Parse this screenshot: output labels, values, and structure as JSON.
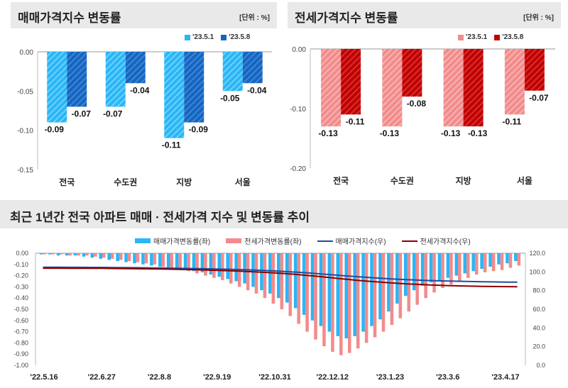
{
  "colors": {
    "sale_prev": "#29b6f6",
    "sale_curr": "#1565c0",
    "jeonse_prev": "#f28b8b",
    "jeonse_curr": "#c00000",
    "sale_index_line": "#1f4e9c",
    "jeonse_index_line": "#8b0000"
  },
  "chart_data": [
    {
      "type": "bar",
      "title": "매매가격지수 변동률",
      "unit_label": "[단위 : %]",
      "categories": [
        "전국",
        "수도권",
        "지방",
        "서울"
      ],
      "series": [
        {
          "name": "'23.5.1",
          "values": [
            -0.09,
            -0.07,
            -0.11,
            -0.05
          ]
        },
        {
          "name": "'23.5.8",
          "values": [
            -0.07,
            -0.04,
            -0.09,
            -0.04
          ]
        }
      ],
      "ylim": [
        -0.15,
        0.0
      ],
      "yticks": [
        "0.00",
        "-0.05",
        "-0.10",
        "-0.15"
      ],
      "yticks_values": [
        0.0,
        -0.05,
        -0.1,
        -0.15
      ],
      "value_labels": [
        [
          "-0.09",
          "-0.07",
          "-0.11",
          "-0.05"
        ],
        [
          "-0.07",
          "-0.04",
          "-0.09",
          "-0.04"
        ]
      ],
      "legend": "top-right"
    },
    {
      "type": "bar",
      "title": "전세가격지수 변동률",
      "unit_label": "[단위 : %]",
      "categories": [
        "전국",
        "수도권",
        "지방",
        "서울"
      ],
      "series": [
        {
          "name": "'23.5.1",
          "values": [
            -0.13,
            -0.13,
            -0.13,
            -0.11
          ]
        },
        {
          "name": "'23.5.8",
          "values": [
            -0.11,
            -0.08,
            -0.13,
            -0.07
          ]
        }
      ],
      "ylim": [
        -0.2,
        0.0
      ],
      "yticks": [
        "0.00",
        "-0.10",
        "-0.20"
      ],
      "yticks_values": [
        0.0,
        -0.1,
        -0.2
      ],
      "value_labels": [
        [
          "-0.13",
          "-0.13",
          "-0.13",
          "-0.11"
        ],
        [
          "-0.11",
          "-0.08",
          "-0.13",
          "-0.07"
        ]
      ],
      "legend": "top-right"
    },
    {
      "type": "bar",
      "title": "최근 1년간 전국 아파트 매매 · 전세가격 지수 및 변동률 추이",
      "legend_labels": [
        "매매가격변동률(좌)",
        "전세가격변동률(좌)",
        "매매가격지수(우)",
        "전세가격지수(우)"
      ],
      "x_tick_labels": [
        "'22.5.16",
        "'22.6.27",
        "'22.8.8",
        "'22.9.19",
        "'22.10.31",
        "'22.12.12",
        "'23.1.23",
        "'23.3.6",
        "'23.4.17"
      ],
      "y_left_ticks": [
        "0.00",
        "-0.10",
        "-0.20",
        "-0.30",
        "-0.40",
        "-0.50",
        "-0.60",
        "-0.70",
        "-0.80",
        "-0.90",
        "-1.00"
      ],
      "y_left_lim": [
        -1.0,
        0.0
      ],
      "y_right_ticks": [
        "120.0",
        "100.0",
        "80.0",
        "60.0",
        "40.0",
        "20.0",
        "0.0"
      ],
      "y_right_lim": [
        0,
        120
      ],
      "sale_change": [
        -0.01,
        -0.01,
        -0.02,
        -0.02,
        -0.02,
        -0.03,
        -0.04,
        -0.05,
        -0.06,
        -0.07,
        -0.08,
        -0.09,
        -0.1,
        -0.11,
        -0.12,
        -0.13,
        -0.14,
        -0.15,
        -0.16,
        -0.17,
        -0.19,
        -0.21,
        -0.23,
        -0.25,
        -0.27,
        -0.3,
        -0.33,
        -0.36,
        -0.4,
        -0.44,
        -0.49,
        -0.55,
        -0.6,
        -0.65,
        -0.7,
        -0.74,
        -0.76,
        -0.74,
        -0.7,
        -0.65,
        -0.59,
        -0.52,
        -0.45,
        -0.38,
        -0.33,
        -0.29,
        -0.26,
        -0.24,
        -0.22,
        -0.2,
        -0.18,
        -0.16,
        -0.14,
        -0.12,
        -0.1,
        -0.09,
        -0.07
      ],
      "jeonse_change": [
        -0.01,
        -0.01,
        -0.01,
        -0.02,
        -0.02,
        -0.02,
        -0.03,
        -0.04,
        -0.05,
        -0.06,
        -0.07,
        -0.08,
        -0.09,
        -0.1,
        -0.12,
        -0.13,
        -0.14,
        -0.16,
        -0.18,
        -0.2,
        -0.22,
        -0.24,
        -0.27,
        -0.3,
        -0.33,
        -0.36,
        -0.4,
        -0.45,
        -0.5,
        -0.56,
        -0.63,
        -0.7,
        -0.77,
        -0.83,
        -0.88,
        -0.91,
        -0.89,
        -0.85,
        -0.8,
        -0.75,
        -0.7,
        -0.64,
        -0.58,
        -0.52,
        -0.46,
        -0.4,
        -0.35,
        -0.31,
        -0.28,
        -0.25,
        -0.22,
        -0.19,
        -0.17,
        -0.16,
        -0.15,
        -0.13,
        -0.11
      ],
      "sale_index": [
        105.0,
        105.0,
        105.0,
        104.9,
        104.9,
        104.9,
        104.8,
        104.8,
        104.7,
        104.6,
        104.6,
        104.5,
        104.4,
        104.3,
        104.2,
        104.0,
        103.9,
        103.7,
        103.6,
        103.4,
        103.2,
        103.0,
        102.8,
        102.5,
        102.2,
        101.9,
        101.6,
        101.2,
        100.7,
        100.2,
        99.7,
        99.1,
        98.4,
        97.7,
        97.0,
        96.3,
        95.6,
        94.9,
        94.3,
        93.7,
        93.1,
        92.6,
        92.1,
        91.7,
        91.3,
        91.0,
        90.7,
        90.4,
        90.2,
        90.0,
        89.8,
        89.6,
        89.4,
        89.3,
        89.2,
        89.1,
        89.0
      ],
      "jeonse_index": [
        104.0,
        104.0,
        104.0,
        103.9,
        103.9,
        103.9,
        103.8,
        103.8,
        103.7,
        103.6,
        103.5,
        103.4,
        103.3,
        103.2,
        103.1,
        102.9,
        102.7,
        102.5,
        102.3,
        102.1,
        101.8,
        101.5,
        101.2,
        100.9,
        100.5,
        100.1,
        99.6,
        99.1,
        98.5,
        97.9,
        97.2,
        96.4,
        95.6,
        94.7,
        93.8,
        92.9,
        92.0,
        91.1,
        90.3,
        89.6,
        88.9,
        88.3,
        87.7,
        87.2,
        86.7,
        86.3,
        85.9,
        85.6,
        85.3,
        85.1,
        84.9,
        84.7,
        84.5,
        84.4,
        84.3,
        84.2,
        84.1
      ]
    }
  ]
}
